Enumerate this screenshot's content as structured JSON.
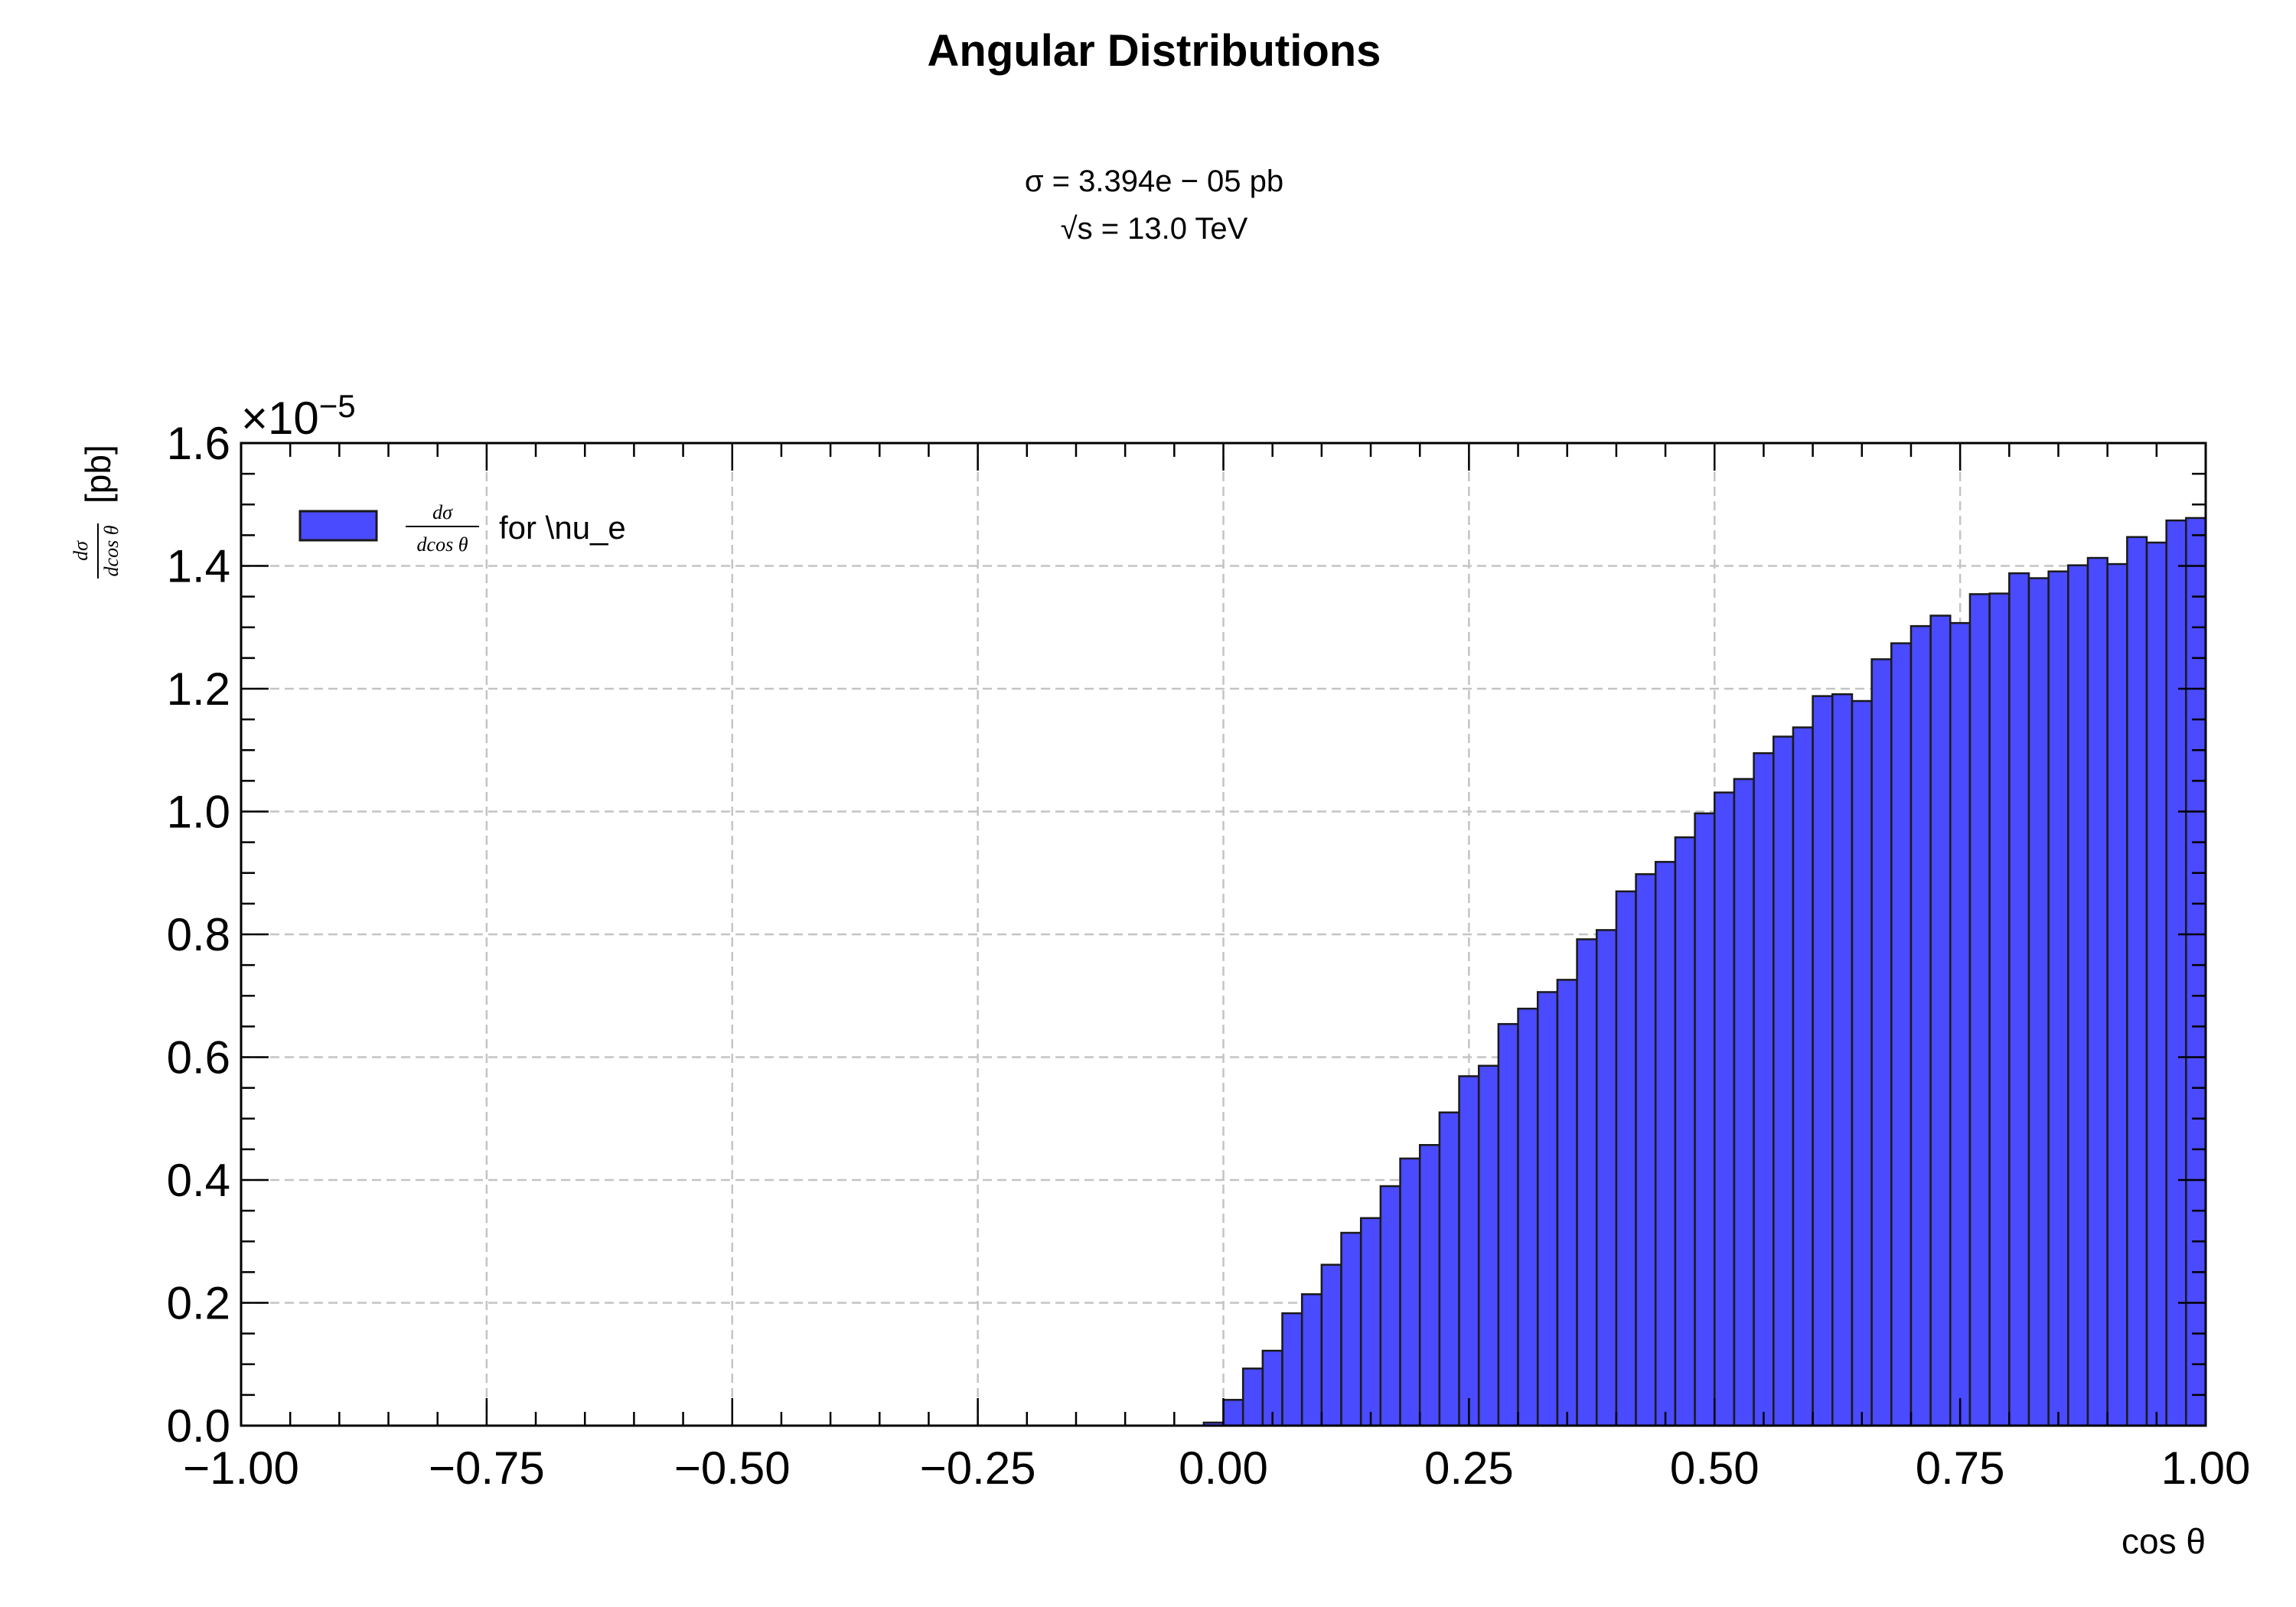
{
  "chart_data": {
    "type": "bar",
    "title": "Angular Distributions",
    "subtitle_lines": [
      "σ = 3.394e − 05 pb",
      "√s = 13.0 TeV"
    ],
    "xlabel": "cos θ",
    "ylabel": "dσ/dcos θ [pb]",
    "ylabel_parts": {
      "numerator": "dσ",
      "denominator": "dcos θ",
      "unit": "[pb]"
    },
    "y_multiplier": "×10",
    "y_multiplier_exp": "−5",
    "xlim": [
      -1.0,
      1.0
    ],
    "ylim": [
      0.0,
      1.6
    ],
    "x_ticks": [
      "−1.00",
      "−0.75",
      "−0.50",
      "−0.25",
      "0.00",
      "0.25",
      "0.50",
      "0.75",
      "1.00"
    ],
    "x_tick_values": [
      -1.0,
      -0.75,
      -0.5,
      -0.25,
      0.0,
      0.25,
      0.5,
      0.75,
      1.0
    ],
    "y_ticks": [
      "0.0",
      "0.2",
      "0.4",
      "0.6",
      "0.8",
      "1.0",
      "1.2",
      "1.4",
      "1.6"
    ],
    "y_tick_values": [
      0.0,
      0.2,
      0.4,
      0.6,
      0.8,
      1.0,
      1.2,
      1.4,
      1.6
    ],
    "grid": true,
    "legend_position": "top-left",
    "series": [
      {
        "name": "dσ/dcos θ for \\nu_e",
        "legend_parts": {
          "numerator": "dσ",
          "denominator": "dcos θ",
          "suffix": "for \\nu_e"
        },
        "color": "#4a4aff",
        "edge_color": "#1a1a1a",
        "bin_edges_start": -1.0,
        "bin_width": 0.02,
        "values": [
          0,
          0,
          0,
          0,
          0,
          0,
          0,
          0,
          0,
          0,
          0,
          0,
          0,
          0,
          0,
          0,
          0,
          0,
          0,
          0,
          0,
          0,
          0,
          0,
          0,
          0,
          0,
          0,
          0,
          0,
          0,
          0,
          0,
          0,
          0,
          0,
          0,
          0,
          0,
          0,
          0,
          0,
          0,
          0,
          0,
          0,
          0,
          0,
          0,
          0.005,
          0.042,
          0.093,
          0.122,
          0.183,
          0.214,
          0.262,
          0.314,
          0.338,
          0.39,
          0.435,
          0.457,
          0.51,
          0.569,
          0.586,
          0.654,
          0.679,
          0.706,
          0.726,
          0.792,
          0.807,
          0.87,
          0.898,
          0.918,
          0.958,
          0.997,
          1.031,
          1.053,
          1.095,
          1.122,
          1.137,
          1.188,
          1.191,
          1.18,
          1.248,
          1.274,
          1.302,
          1.319,
          1.307,
          1.354,
          1.355,
          1.388,
          1.38,
          1.391,
          1.401,
          1.413,
          1.403,
          1.447,
          1.438,
          1.474,
          1.478
        ]
      }
    ]
  }
}
